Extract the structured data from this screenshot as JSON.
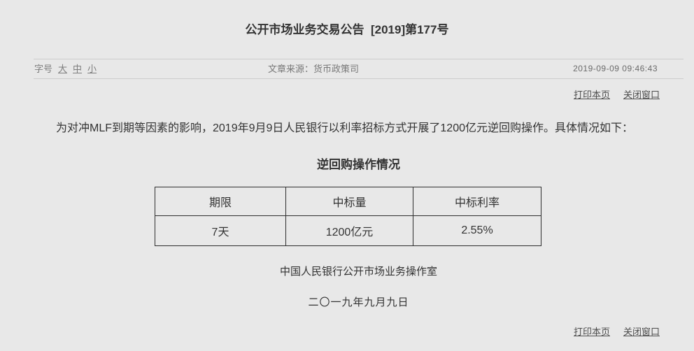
{
  "page": {
    "background_color": "#e8e8e8",
    "text_color": "#333333",
    "link_color": "#4d4d4d"
  },
  "header": {
    "title": "公开市场业务交易公告  [2019]第177号"
  },
  "meta_bar": {
    "font_size_label": "字号",
    "font_size_options": [
      "大",
      "中",
      "小"
    ],
    "source_label": "文章来源：货币政策司",
    "timestamp": "2019-09-09 09:46:43"
  },
  "actions": {
    "print_label": "打印本页",
    "close_label": "关闭窗口"
  },
  "body": {
    "paragraph": "为对冲MLF到期等因素的影响，2019年9月9日人民银行以利率招标方式开展了1200亿元逆回购操作。具体情况如下："
  },
  "table": {
    "title": "逆回购操作情况",
    "headers": [
      "期限",
      "中标量",
      "中标利率"
    ],
    "rows": [
      [
        "7天",
        "1200亿元",
        "2.55%"
      ]
    ]
  },
  "signature": {
    "department": "中国人民银行公开市场业务操作室",
    "date": "二〇一九年九月九日"
  }
}
